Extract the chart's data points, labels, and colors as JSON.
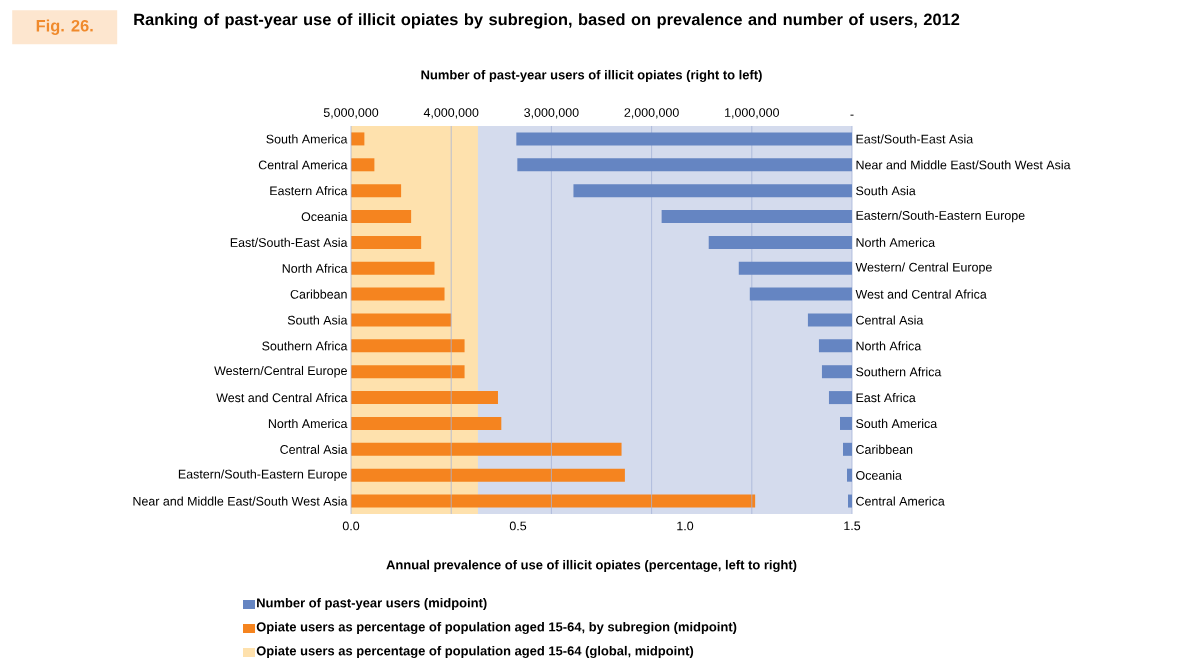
{
  "chart_data": [
    {
      "type": "bar",
      "orientation": "horizontal",
      "title": "Ranking of past-year use of illicit opiates by subregion, based on prevalence and number of users, 2012",
      "annotations": [
        "Fig. 26."
      ],
      "xlabel": "Annual prevalence of use of illicit opiates (percentage, left to right)",
      "categories": [
        "South America",
        "Central America",
        "Eastern Africa",
        "Oceania",
        "East/South-East Asia",
        "North Africa",
        "Caribbean",
        "South Asia",
        "Southern Africa",
        "Western/Central Europe",
        "West and Central Africa",
        "North America",
        "Central Asia",
        "Eastern/South-Eastern Europe",
        "Near and Middle East/South West Asia"
      ],
      "series": [
        {
          "name": "Opiate users as percentage of population aged 15-64, by subregion (midpoint)",
          "color": "#f5841f",
          "values": [
            0.04,
            0.07,
            0.15,
            0.18,
            0.21,
            0.25,
            0.28,
            0.3,
            0.34,
            0.34,
            0.44,
            0.45,
            0.81,
            0.82,
            1.21
          ]
        }
      ],
      "xlim": [
        0,
        1.5
      ],
      "xticks": [
        {
          "value": 0,
          "label": "0.0"
        },
        {
          "value": 0.5,
          "label": "0.5"
        },
        {
          "value": 1,
          "label": "1.0"
        },
        {
          "value": 1.5,
          "label": "1.5"
        }
      ],
      "bands": [
        {
          "axis": "x",
          "from": 0,
          "to": 0.38,
          "label": "Opiate users as percentage of population aged 15-64 (global, midpoint)",
          "color": "#fee1ad"
        }
      ],
      "legend": "bottom"
    },
    {
      "type": "bar",
      "orientation": "horizontal",
      "xlabel": "Number of past-year users of illicit opiates (right to left)",
      "categories": [
        "East/South-East Asia",
        "Near and Middle East/South West Asia",
        "South Asia",
        "Eastern/South-Eastern Europe",
        "North America",
        "Western/ Central Europe",
        "West and Central Africa",
        "Central Asia",
        "North Africa",
        "Southern Africa",
        "East Africa",
        "South America",
        "Caribbean",
        "Oceania",
        "Central America"
      ],
      "series": [
        {
          "name": "Number of past-year users (midpoint)",
          "color": "#6585c2",
          "values": [
            3350000,
            3340000,
            2780000,
            1900000,
            1430000,
            1130000,
            1020000,
            440000,
            330000,
            300000,
            230000,
            120000,
            90000,
            50000,
            40000
          ]
        }
      ],
      "xlim": [
        5000000,
        0
      ],
      "xticks": [
        {
          "value": 5000000,
          "label": "5,000,000"
        },
        {
          "value": 4000000,
          "label": "4,000,000"
        },
        {
          "value": 3000000,
          "label": "3,000,000"
        },
        {
          "value": 2000000,
          "label": "2,000,000"
        },
        {
          "value": 1000000,
          "label": "1,000,000"
        },
        {
          "value": 0,
          "label": "-"
        }
      ],
      "grid": "x",
      "legend": "bottom"
    }
  ]
}
